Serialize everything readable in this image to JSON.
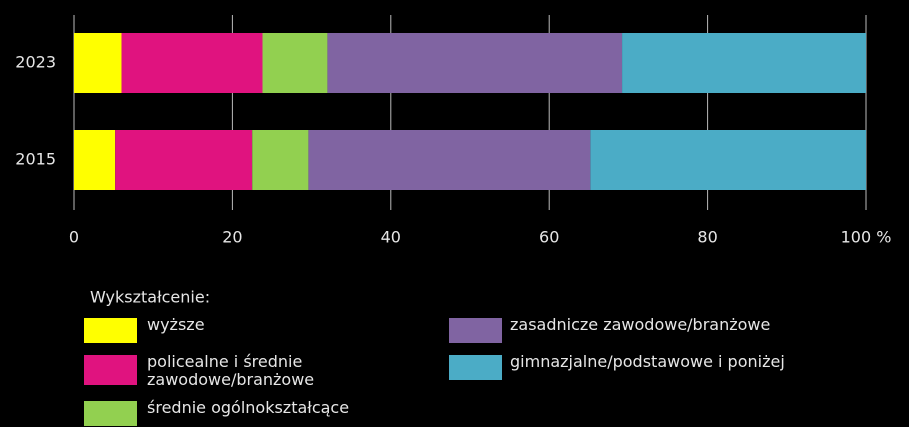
{
  "chart_data": {
    "type": "stacked_bar_horizontal",
    "categories": [
      "2023",
      "2015"
    ],
    "series": [
      {
        "name": "wyższe",
        "color": "#ffff00",
        "values": [
          6,
          5.2
        ]
      },
      {
        "name": "policealne i średnie zawodowe/branżowe",
        "color": "#e0137f",
        "values": [
          17.8,
          17.3
        ]
      },
      {
        "name": "średnie ogólnokształcące",
        "color": "#92d050",
        "values": [
          8.2,
          7.1
        ]
      },
      {
        "name": "zasadnicze zawodowe/branżowe",
        "color": "#8064a2",
        "values": [
          37.2,
          35.6
        ]
      },
      {
        "name": "gimnazjalne/podstawowe i poniżej",
        "color": "#4bacc6",
        "values": [
          30.8,
          34.8
        ]
      }
    ],
    "xlim": [
      0,
      100
    ],
    "xticks": [
      0,
      20,
      40,
      60,
      80,
      {
        "value": 100,
        "label": "100 %"
      }
    ],
    "legend_title": "Wykształcenie:",
    "grid": true
  }
}
